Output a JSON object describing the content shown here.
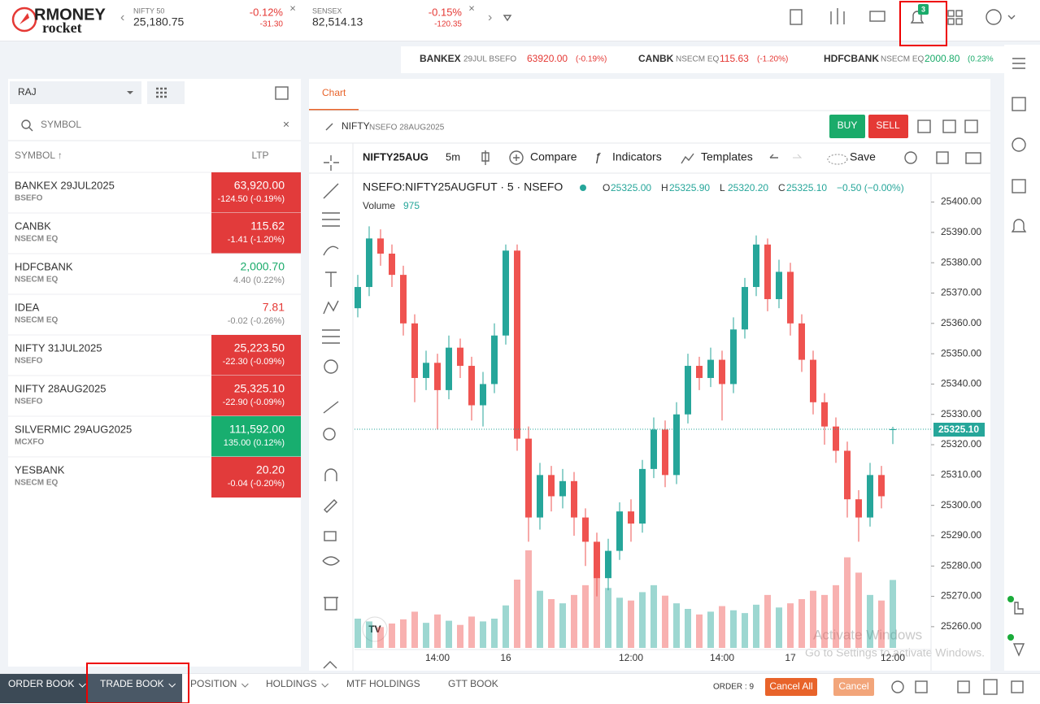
{
  "header": {
    "logo_top": "RMONEY",
    "logo_bottom": "rocket",
    "notification_count": "3",
    "indices": [
      {
        "name": "NIFTY 50",
        "value": "25,180.75",
        "change": "-0.12%",
        "points": "-31.30"
      },
      {
        "name": "SENSEX",
        "value": "82,514.13",
        "change": "-0.15%",
        "points": "-120.35"
      }
    ]
  },
  "ticker": [
    {
      "symbol": "BANKEX",
      "exchange": "29JUL  BSEFO",
      "price": "63920.00",
      "change": "(-0.19%)",
      "tone": "down"
    },
    {
      "symbol": "CANBK",
      "exchange": "NSECM EQ",
      "price": "115.63",
      "change": "(-1.20%)",
      "tone": "down"
    },
    {
      "symbol": "HDFCBANK",
      "exchange": "NSECM EQ",
      "price": "2000.80",
      "change": "(0.23%",
      "tone": "up"
    }
  ],
  "watchlist": {
    "group": "RAJ",
    "search_placeholder": "SYMBOL",
    "col_symbol": "SYMBOL ↑",
    "col_ltp": "LTP",
    "rows": [
      {
        "symbol": "BANKEX 29JUL2025",
        "exchange": "BSEFO",
        "ltp": "63,920.00",
        "change": "-124.50 (-0.19%)",
        "tone": "down",
        "flash": true
      },
      {
        "symbol": "CANBK",
        "exchange": "NSECM  EQ",
        "ltp": "115.62",
        "change": "-1.41 (-1.20%)",
        "tone": "down",
        "flash": true
      },
      {
        "symbol": "HDFCBANK",
        "exchange": "NSECM  EQ",
        "ltp": "2,000.70",
        "change": "4.40 (0.22%)",
        "tone": "up",
        "flash": false
      },
      {
        "symbol": "IDEA",
        "exchange": "NSECM  EQ",
        "ltp": "7.81",
        "change": "-0.02 (-0.26%)",
        "tone": "down",
        "flash": false
      },
      {
        "symbol": "NIFTY 31JUL2025",
        "exchange": "NSEFO",
        "ltp": "25,223.50",
        "change": "-22.30 (-0.09%)",
        "tone": "down",
        "flash": true
      },
      {
        "symbol": "NIFTY 28AUG2025",
        "exchange": "NSEFO",
        "ltp": "25,325.10",
        "change": "-22.90 (-0.09%)",
        "tone": "down",
        "flash": true
      },
      {
        "symbol": "SILVERMIC 29AUG2025",
        "exchange": "MCXFO",
        "ltp": "111,592.00",
        "change": "135.00 (0.12%)",
        "tone": "up",
        "flash": true
      },
      {
        "symbol": "YESBANK",
        "exchange": "NSECM  EQ",
        "ltp": "20.20",
        "change": "-0.04 (-0.20%)",
        "tone": "down",
        "flash": true
      }
    ]
  },
  "chart_panel": {
    "tab": "Chart",
    "symbol": "NIFTY",
    "exchange": "NSEFO  28AUG2025",
    "buy": "BUY",
    "sell": "SELL",
    "toolbar": {
      "symbol": "NIFTY25AUG",
      "interval": "5m",
      "compare": "Compare",
      "indicators": "Indicators",
      "templates": "Templates",
      "save": "Save"
    },
    "legend": {
      "title": "NSEFO:NIFTY25AUGFUT · 5 · NSEFO",
      "ohlc": [
        {
          "key": "O",
          "value": "25325.00"
        },
        {
          "key": "H",
          "value": "25325.90"
        },
        {
          "key": "L",
          "value": "25320.20"
        },
        {
          "key": "C",
          "value": "25325.10"
        }
      ],
      "change": "−0.50 (−0.00%)",
      "volume_label": "Volume",
      "volume_value": "975"
    },
    "last_price_label": "25325.10"
  },
  "chart_data": {
    "type": "candlestick",
    "up_color": "#26a69a",
    "down_color": "#ef5350",
    "categories": [
      null,
      null,
      null,
      null,
      null,
      null,
      null,
      "14:00",
      null,
      null,
      null,
      null,
      null,
      "16",
      null,
      null,
      null,
      null,
      null,
      null,
      null,
      null,
      null,
      null,
      "12:00",
      null,
      null,
      null,
      null,
      null,
      null,
      null,
      "14:00",
      null,
      null,
      null,
      null,
      null,
      "17",
      null,
      null,
      null,
      null,
      null,
      null,
      null,
      null,
      "12:00"
    ],
    "open": [
      25365,
      25372,
      25388,
      25383,
      25376,
      25360,
      25342,
      25347,
      25338,
      25352,
      25346,
      25333,
      25340,
      25356,
      25384,
      25322,
      25296,
      25310,
      25303,
      25308,
      25296,
      25288,
      25276,
      25285,
      25298,
      25294,
      25312,
      25325,
      25310,
      25330,
      25346,
      25342,
      25348,
      25340,
      25358,
      25372,
      25386,
      25368,
      25377,
      25360,
      25348,
      25334,
      25326,
      25318,
      25302,
      25296,
      25310,
      25325
    ],
    "high": [
      25376,
      25392,
      25391,
      25386,
      25379,
      25363,
      25351,
      25350,
      25356,
      25355,
      25349,
      25344,
      25360,
      25386,
      25386,
      25326,
      25314,
      25313,
      25312,
      25311,
      25299,
      25291,
      25289,
      25301,
      25302,
      25315,
      25329,
      25328,
      25334,
      25350,
      25349,
      25352,
      25351,
      25362,
      25375,
      25389,
      25388,
      25381,
      25380,
      25363,
      25351,
      25337,
      25329,
      25321,
      25305,
      25314,
      25313,
      25325.9
    ],
    "low": [
      25362,
      25369,
      25379,
      25372,
      25356,
      25334,
      25338,
      25325,
      25335,
      25342,
      25328,
      25326,
      25337,
      25353,
      25318,
      25288,
      25292,
      25298,
      25299,
      25290,
      25280,
      25270,
      25272,
      25282,
      25288,
      25291,
      25309,
      25306,
      25307,
      25327,
      25338,
      25339,
      25328,
      25337,
      25355,
      25369,
      25364,
      25365,
      25356,
      25344,
      25330,
      25320,
      25314,
      25296,
      25288,
      25293,
      25299,
      25320.2
    ],
    "close": [
      25372,
      25388,
      25383,
      25376,
      25360,
      25342,
      25347,
      25338,
      25352,
      25346,
      25333,
      25340,
      25356,
      25384,
      25322,
      25296,
      25310,
      25303,
      25308,
      25296,
      25288,
      25276,
      25285,
      25298,
      25294,
      25312,
      25325,
      25310,
      25330,
      25346,
      25342,
      25348,
      25340,
      25358,
      25372,
      25386,
      25368,
      25377,
      25360,
      25348,
      25334,
      25326,
      25318,
      25302,
      25296,
      25310,
      25303,
      25325.1
    ],
    "volume": [
      420,
      380,
      300,
      350,
      410,
      520,
      360,
      480,
      390,
      330,
      450,
      380,
      420,
      610,
      980,
      1400,
      820,
      700,
      640,
      760,
      900,
      1100,
      860,
      720,
      680,
      800,
      900,
      750,
      640,
      560,
      480,
      520,
      600,
      540,
      500,
      620,
      760,
      580,
      640,
      700,
      820,
      760,
      900,
      1300,
      1080,
      760,
      680,
      975
    ],
    "ylim": [
      25253,
      25409
    ],
    "yticks": [
      {
        "value": 25260,
        "label": "25260.00"
      },
      {
        "value": 25270,
        "label": "25270.00"
      },
      {
        "value": 25280,
        "label": "25280.00"
      },
      {
        "value": 25290,
        "label": "25290.00"
      },
      {
        "value": 25300,
        "label": "25300.00"
      },
      {
        "value": 25310,
        "label": "25310.00"
      },
      {
        "value": 25320,
        "label": "25320.00"
      },
      {
        "value": 25330,
        "label": "25330.00"
      },
      {
        "value": 25340,
        "label": "25340.00"
      },
      {
        "value": 25350,
        "label": "25350.00"
      },
      {
        "value": 25360,
        "label": "25360.00"
      },
      {
        "value": 25370,
        "label": "25370.00"
      },
      {
        "value": 25380,
        "label": "25380.00"
      },
      {
        "value": 25390,
        "label": "25390.00"
      },
      {
        "value": 25400,
        "label": "25400.00"
      }
    ]
  },
  "bottom_bar": {
    "tabs": [
      "ORDER BOOK",
      "TRADE BOOK",
      "POSITION",
      "HOLDINGS",
      "MTF HOLDINGS",
      "GTT BOOK"
    ],
    "order_count": "ORDER : 9",
    "cancel_all": "Cancel All",
    "cancel": "Cancel"
  },
  "watermark": {
    "line1": "Activate Windows",
    "line2": "Go to Settings to activate Windows."
  }
}
